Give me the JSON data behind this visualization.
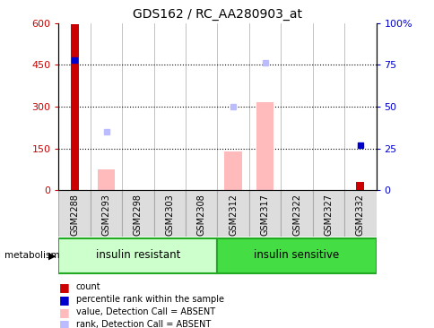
{
  "title": "GDS162 / RC_AA280903_at",
  "samples": [
    "GSM2288",
    "GSM2293",
    "GSM2298",
    "GSM2303",
    "GSM2308",
    "GSM2312",
    "GSM2317",
    "GSM2322",
    "GSM2327",
    "GSM2332"
  ],
  "count_values": [
    597,
    0,
    0,
    0,
    0,
    0,
    0,
    0,
    0,
    30
  ],
  "percentile_rank_pct": [
    78,
    0,
    0,
    0,
    0,
    0,
    0,
    0,
    0,
    27
  ],
  "value_absent": [
    0,
    75,
    0,
    0,
    0,
    140,
    315,
    0,
    0,
    0
  ],
  "rank_absent_pct": [
    0,
    35,
    0,
    0,
    0,
    50,
    76,
    0,
    0,
    0
  ],
  "ylim": [
    0,
    600
  ],
  "yticks": [
    0,
    150,
    300,
    450,
    600
  ],
  "y2lim": [
    0,
    100
  ],
  "y2ticks": [
    0,
    25,
    50,
    75,
    100
  ],
  "y2tick_labels": [
    "0",
    "25",
    "50",
    "75",
    "100%"
  ],
  "group1_label": "insulin resistant",
  "group2_label": "insulin sensitive",
  "group1_indices": [
    0,
    1,
    2,
    3,
    4
  ],
  "group2_indices": [
    5,
    6,
    7,
    8,
    9
  ],
  "group1_color": "#ccffcc",
  "group2_color": "#44dd44",
  "metabolism_label": "metabolism",
  "legend_items": [
    {
      "label": "count",
      "color": "#cc0000"
    },
    {
      "label": "percentile rank within the sample",
      "color": "#0000cc"
    },
    {
      "label": "value, Detection Call = ABSENT",
      "color": "#ffbbbb"
    },
    {
      "label": "rank, Detection Call = ABSENT",
      "color": "#bbbbff"
    }
  ],
  "count_color": "#cc0000",
  "prank_color": "#0000cc",
  "value_absent_color": "#ffbbbb",
  "rank_absent_color": "#bbbbff",
  "tick_label_color_left": "#cc0000",
  "tick_label_color_right": "#0000cc",
  "sample_box_color": "#dddddd",
  "background_color": "#ffffff"
}
